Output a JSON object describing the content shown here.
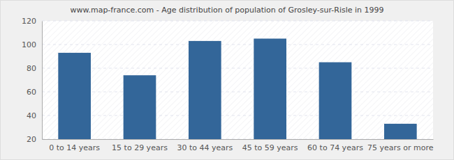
{
  "chart_data": {
    "type": "bar",
    "title": "www.map-france.com - Age distribution of population of Grosley-sur-Risle in 1999",
    "categories": [
      "0 to 14 years",
      "15 to 29 years",
      "30 to 44 years",
      "45 to 59 years",
      "60 to 74 years",
      "75 years or more"
    ],
    "values": [
      93,
      74,
      103,
      105,
      85,
      33
    ],
    "color": "#336699",
    "ylim": [
      20,
      120
    ],
    "yticks": [
      20,
      40,
      60,
      80,
      100,
      120
    ],
    "grid": true
  }
}
